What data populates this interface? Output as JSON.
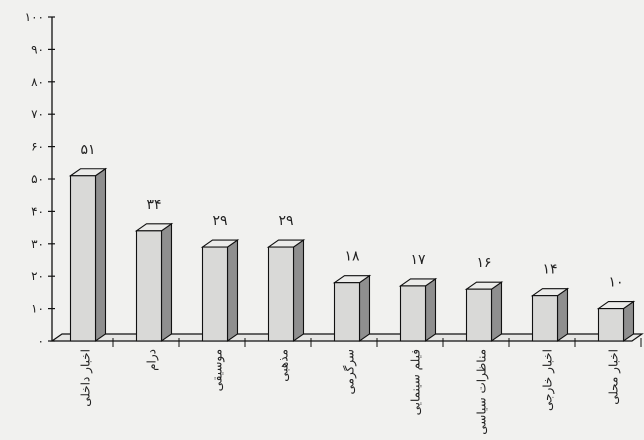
{
  "chart_data": {
    "type": "bar",
    "title": "",
    "xlabel": "",
    "ylabel": "",
    "ylim": [
      0,
      100
    ],
    "yticks": [
      0,
      10,
      20,
      30,
      40,
      50,
      60,
      70,
      80,
      90,
      100
    ],
    "ytick_labels": [
      "۰",
      "۱۰",
      "۲۰",
      "۳۰",
      "۴۰",
      "۵۰",
      "۶۰",
      "۷۰",
      "۸۰",
      "۹۰",
      "۱۰۰"
    ],
    "categories": [
      "اخبار داخلی",
      "درام",
      "موسیقی",
      "مذهبی",
      "سرگرمی",
      "فیلم سینمایی",
      "مناظرات سیاسی",
      "اخبار خارجی",
      "اخبار محلی"
    ],
    "values": [
      51,
      34,
      29,
      29,
      18,
      17,
      16,
      14,
      10
    ],
    "value_labels": [
      "۵۱",
      "۳۴",
      "۲۹",
      "۲۹",
      "۱۸",
      "۱۷",
      "۱۶",
      "۱۴",
      "۱۰"
    ],
    "grid": false,
    "legend": "none",
    "colors": {
      "bar_front": "#d9d9d7",
      "bar_side": "#8f8f8f",
      "bar_top": "#ececea",
      "outline": "#111111"
    }
  }
}
